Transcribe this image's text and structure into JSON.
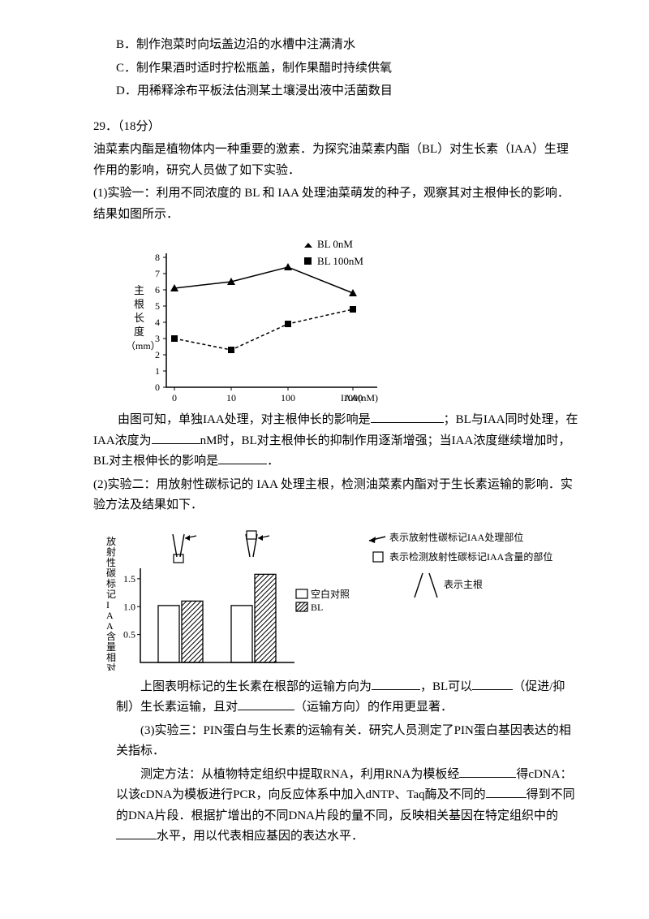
{
  "options": {
    "B": "B．制作泡菜时向坛盖边沿的水槽中注满清水",
    "C": "C．制作果酒时适时拧松瓶盖，制作果醋时持续供氧",
    "D": "D．用稀释涂布平板法估测某土壤浸出液中活菌数目"
  },
  "q29": {
    "header": "29．（18分）",
    "intro": "油菜素内酯是植物体内一种重要的激素．为探究油菜素内酯（BL）对生长素（IAA）生理作用的影响，研究人员做了如下实验．",
    "part1_a": "(1)实验一：利用不同浓度的 BL 和 IAA 处理油菜萌发的种子，观察其对主根伸长的影响．结果如图所示．",
    "part1_b_pre": "由图可知，单独IAA处理，对主根伸长的影响是",
    "part1_b_mid1": "；BL与IAA同时处理，在IAA浓度为",
    "part1_b_mid2": "nM时，BL对主根伸长的抑制作用逐渐增强；当IAA浓度继续增加时，BL对主根伸长的影响是",
    "part1_b_end": "．",
    "part2_a": "(2)实验二：用放射性碳标记的 IAA 处理主根，检测油菜素内酯对于生长素运输的影响．实验方法及结果如下．",
    "part2_b_pre": "上图表明标记的生长素在根部的运输方向为",
    "part2_b_mid1": "，BL可以",
    "part2_b_mid2": "（促进/抑制）生长素运输，且对",
    "part2_b_mid3": "（运输方向）的作用更显著．",
    "part3_a": "(3)实验三：PIN蛋白与生长素的运输有关．研究人员测定了PIN蛋白基因表达的相关指标．",
    "part3_b_pre": "测定方法：从植物特定组织中提取RNA，利用RNA为模板经",
    "part3_b_mid1": "得cDNA：以该cDNA为模板进行PCR，向反应体系中加入dNTP、Taq酶及不同的",
    "part3_b_mid2": "得到不同的DNA片段．根据扩增出的不同DNA片段的量不同，反映相关基因在特定组织中的",
    "part3_b_mid3": "水平，用以代表相应基因的表达水平．"
  },
  "chart1": {
    "x_ticks": [
      "0",
      "10",
      "100",
      "1000"
    ],
    "x_positions": [
      60,
      130,
      200,
      280
    ],
    "y_ticks": [
      "0",
      "1",
      "2",
      "3",
      "4",
      "5",
      "6",
      "7",
      "8"
    ],
    "line1_y": [
      6.1,
      6.5,
      7.4,
      5.8
    ],
    "line2_y": [
      3.0,
      2.3,
      3.9,
      4.8
    ],
    "legend1": "BL 0nM",
    "legend2": "BL 100nM",
    "y_label_1": "主",
    "y_label_2": "根",
    "y_label_3": "长",
    "y_label_4": "度",
    "y_unit": "（mm）",
    "x_label": "IAA(nM)"
  },
  "chart2": {
    "y_ticks": [
      "0.5",
      "1.0",
      "1.5"
    ],
    "legend1": "空白对照",
    "legend2": "BL",
    "note1": "表示放射性碳标记IAA处理部位",
    "note2": "表示检测放射性碳标记IAA含量的部位",
    "note3": "表示主根",
    "y_label": "放射性碳标记IAA含量相对值"
  }
}
